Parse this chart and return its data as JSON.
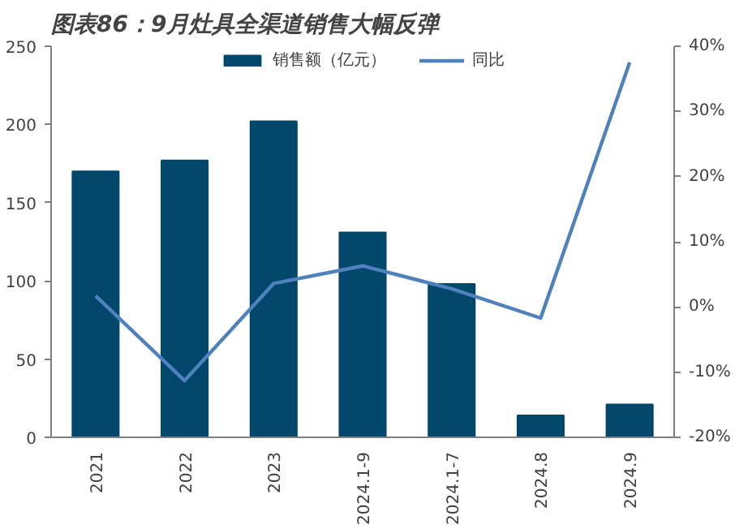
{
  "chart_data": {
    "type": "bar",
    "title": "图表86：9月灶具全渠道销售大幅反弹",
    "categories": [
      "2021",
      "2022",
      "2023",
      "2024.1-9",
      "2024.1-7",
      "2024.8",
      "2024.9"
    ],
    "series": [
      {
        "name": "销售额（亿元）",
        "color": "#00476b",
        "values": [
          170,
          177,
          202,
          131,
          98,
          14,
          21
        ]
      },
      {
        "name": "同比",
        "type": "line",
        "axis": "y2",
        "color": "#4f81bd",
        "values": [
          1.7,
          -11.3,
          3.6,
          6.3,
          2.8,
          -1.7,
          37.5
        ]
      }
    ],
    "ylim": [
      0,
      250
    ],
    "yticks": [
      0,
      50,
      100,
      150,
      200,
      250
    ],
    "y2lim": [
      -20,
      40
    ],
    "y2ticks": [
      {
        "value": -20,
        "label": "-20%"
      },
      {
        "value": -10,
        "label": "-10%"
      },
      {
        "value": 0,
        "label": "0%"
      },
      {
        "value": 10,
        "label": "10%"
      },
      {
        "value": 20,
        "label": "20%"
      },
      {
        "value": 30,
        "label": "30%"
      },
      {
        "value": 40,
        "label": "40%"
      }
    ],
    "grid": false,
    "legend": "top"
  }
}
